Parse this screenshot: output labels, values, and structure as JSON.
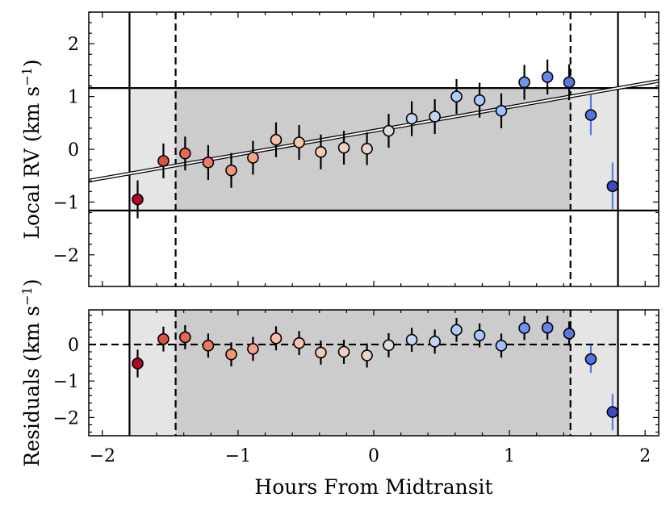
{
  "chart_data": [
    {
      "type": "scatter",
      "panel": "top",
      "xlabel": "",
      "ylabel": "Local RV (km s",
      "ylabel_sup": "−1",
      "ylabel_close": ")",
      "xlim": [
        -2.1,
        2.1
      ],
      "ylim": [
        -2.6,
        2.6
      ],
      "yticks": [
        -2,
        -1,
        0,
        1,
        2
      ],
      "ytick_labels": [
        "−2",
        "−1",
        "0",
        "1",
        "2"
      ],
      "xticks": [
        -2,
        -1,
        0,
        1,
        2
      ],
      "x": [
        -1.74,
        -1.55,
        -1.39,
        -1.22,
        -1.05,
        -0.89,
        -0.72,
        -0.55,
        -0.39,
        -0.22,
        -0.05,
        0.11,
        0.28,
        0.45,
        0.61,
        0.78,
        0.94,
        1.11,
        1.28,
        1.44,
        1.6,
        1.76
      ],
      "y": [
        -0.95,
        -0.22,
        -0.08,
        -0.25,
        -0.4,
        -0.16,
        0.18,
        0.13,
        -0.05,
        0.03,
        0.01,
        0.35,
        0.58,
        0.62,
        1.0,
        0.93,
        0.73,
        1.27,
        1.37,
        1.27,
        0.65,
        -0.7
      ],
      "yerr": [
        0.36,
        0.33,
        0.32,
        0.33,
        0.33,
        0.32,
        0.33,
        0.33,
        0.33,
        0.32,
        0.31,
        0.32,
        0.33,
        0.33,
        0.33,
        0.33,
        0.33,
        0.33,
        0.33,
        0.34,
        0.38,
        0.45
      ],
      "point_colors": [
        "#b40426",
        "#d85341",
        "#e26952",
        "#ea7b60",
        "#f39475",
        "#f6a385",
        "#f6bfa6",
        "#f4c5ad",
        "#f2cbb7",
        "#edd1c2",
        "#ead4c8",
        "#dddcdc",
        "#c5d6f2",
        "#c0d4f5",
        "#afcafc",
        "#a9c6fd",
        "#9ebeff",
        "#6f92f3",
        "#6485ec",
        "#5977e3",
        "#5673e0",
        "#3b4cc0"
      ],
      "model_line": {
        "slope": 0.45,
        "intercept": 0.35
      },
      "horizontal_lines": [
        1.16,
        -1.16
      ],
      "vertical_solid": [
        -1.8,
        1.8
      ],
      "vertical_dashed": [
        -1.46,
        1.45
      ],
      "shaded_light": [
        -1.8,
        1.8
      ],
      "shaded_dark": [
        -1.46,
        1.45
      ],
      "shaded_y_range": [
        -1.16,
        1.16
      ],
      "grid": false,
      "legend": "none"
    },
    {
      "type": "scatter",
      "panel": "bottom",
      "xlabel": "Hours From Midtransit",
      "ylabel": "Residuals (km s",
      "ylabel_sup": "−1",
      "ylabel_close": ")",
      "xlim": [
        -2.1,
        2.1
      ],
      "ylim": [
        -2.5,
        0.95
      ],
      "yticks": [
        -2,
        -1,
        0
      ],
      "ytick_labels": [
        "−2",
        "−1",
        "0"
      ],
      "xticks": [
        -2,
        -1,
        0,
        1,
        2
      ],
      "xtick_labels": [
        "−2",
        "−1",
        "0",
        "1",
        "2"
      ],
      "x": [
        -1.74,
        -1.55,
        -1.39,
        -1.22,
        -1.05,
        -0.89,
        -0.72,
        -0.55,
        -0.39,
        -0.22,
        -0.05,
        0.11,
        0.28,
        0.45,
        0.61,
        0.78,
        0.94,
        1.11,
        1.28,
        1.44,
        1.6,
        1.76
      ],
      "y": [
        -0.52,
        0.15,
        0.2,
        -0.03,
        -0.27,
        -0.12,
        0.17,
        0.04,
        -0.22,
        -0.2,
        -0.3,
        -0.02,
        0.13,
        0.08,
        0.4,
        0.25,
        -0.03,
        0.45,
        0.46,
        0.3,
        -0.4,
        -1.85
      ],
      "yerr": [
        0.38,
        0.34,
        0.33,
        0.33,
        0.33,
        0.33,
        0.33,
        0.33,
        0.33,
        0.33,
        0.33,
        0.33,
        0.33,
        0.33,
        0.33,
        0.33,
        0.33,
        0.33,
        0.33,
        0.33,
        0.38,
        0.5
      ],
      "zero_line": 0,
      "vertical_solid": [
        -1.8,
        1.8
      ],
      "vertical_dashed": [
        -1.46,
        1.45
      ],
      "shaded_light": [
        -1.8,
        1.8
      ],
      "shaded_dark": [
        -1.46,
        1.45
      ],
      "grid": false,
      "legend": "none"
    }
  ],
  "colors": {
    "light_shade": "#e5e5e5",
    "dark_shade": "#cccccc",
    "edge": "#000000",
    "errorbar_edge": "#5b7be8"
  }
}
